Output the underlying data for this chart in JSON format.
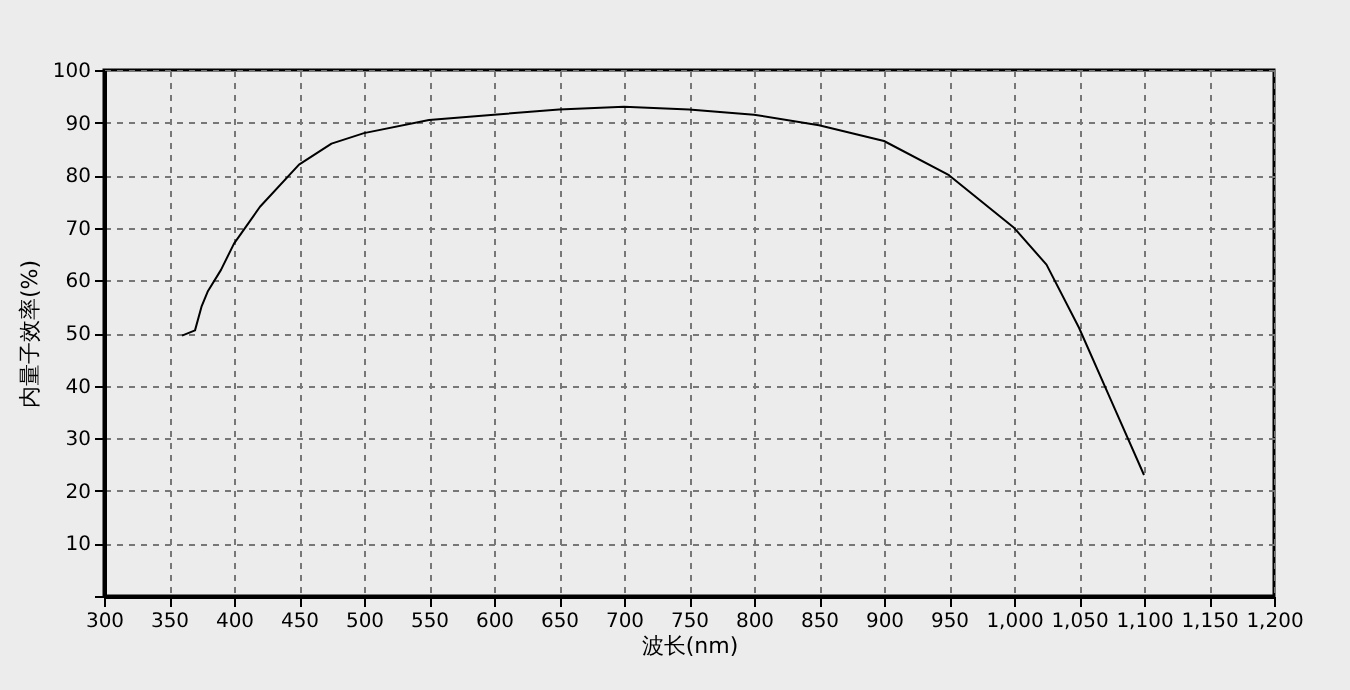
{
  "chart_data": {
    "type": "line",
    "xlabel": "波长(nm)",
    "ylabel": "内量子效率(%)",
    "x": [
      360,
      370,
      375,
      380,
      390,
      400,
      420,
      450,
      475,
      500,
      550,
      600,
      650,
      700,
      750,
      800,
      850,
      900,
      950,
      1000,
      1025,
      1050,
      1075,
      1100
    ],
    "series": [
      {
        "color": "#000000",
        "values": [
          49.5,
          50.5,
          55,
          58,
          62,
          67,
          74,
          82,
          86,
          88,
          90.5,
          91.5,
          92.5,
          93,
          92.5,
          91.5,
          89.5,
          86.5,
          80,
          70,
          63,
          51,
          37,
          23
        ]
      }
    ],
    "xlim": [
      300,
      1200
    ],
    "xticks": [
      300,
      350,
      400,
      450,
      500,
      550,
      600,
      650,
      700,
      750,
      800,
      850,
      900,
      950,
      {
        "value": 1000,
        "label": "1,000"
      },
      {
        "value": 1050,
        "label": "1,050"
      },
      {
        "value": 1100,
        "label": "1,100"
      },
      {
        "value": 1150,
        "label": "1,150"
      },
      {
        "value": 1200,
        "label": "1,200"
      }
    ],
    "ylim": [
      0,
      100
    ],
    "yticks": [
      {
        "value": 0,
        "label": null
      },
      10,
      20,
      30,
      40,
      50,
      60,
      70,
      80,
      90,
      100
    ],
    "grid": true,
    "line_style": "solid"
  }
}
